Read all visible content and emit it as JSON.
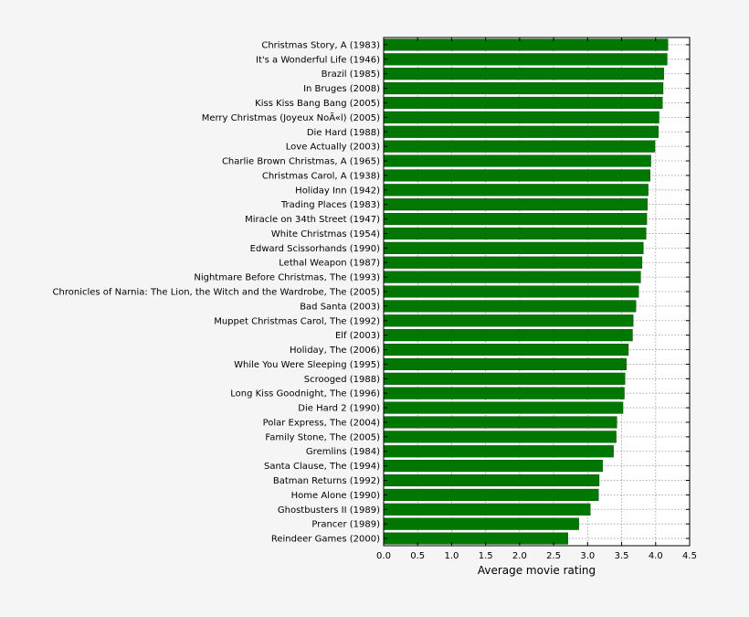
{
  "chart_data": {
    "type": "bar",
    "orientation": "horizontal",
    "categories": [
      "Christmas Story, A (1983)",
      "It's a Wonderful Life (1946)",
      "Brazil (1985)",
      "In Bruges (2008)",
      "Kiss Kiss Bang Bang (2005)",
      "Merry Christmas (Joyeux NoÃ«l) (2005)",
      "Die Hard (1988)",
      "Love Actually (2003)",
      "Charlie Brown Christmas, A (1965)",
      "Christmas Carol, A (1938)",
      "Holiday Inn (1942)",
      "Trading Places (1983)",
      "Miracle on 34th Street (1947)",
      "White Christmas (1954)",
      "Edward Scissorhands (1990)",
      "Lethal Weapon (1987)",
      "Nightmare Before Christmas, The (1993)",
      "Chronicles of Narnia: The Lion, the Witch and the Wardrobe, The (2005)",
      "Bad Santa (2003)",
      "Muppet Christmas Carol, The (1992)",
      "Elf (2003)",
      "Holiday, The (2006)",
      "While You Were Sleeping (1995)",
      "Scrooged (1988)",
      "Long Kiss Goodnight, The (1996)",
      "Die Hard 2 (1990)",
      "Polar Express, The (2004)",
      "Family Stone, The (2005)",
      "Gremlins (1984)",
      "Santa Clause, The (1994)",
      "Batman Returns (1992)",
      "Home Alone (1990)",
      "Ghostbusters II (1989)",
      "Prancer (1989)",
      "Reindeer Games (2000)"
    ],
    "values": [
      4.18,
      4.17,
      4.12,
      4.11,
      4.1,
      4.05,
      4.04,
      3.99,
      3.93,
      3.92,
      3.89,
      3.88,
      3.87,
      3.86,
      3.82,
      3.8,
      3.78,
      3.75,
      3.71,
      3.67,
      3.66,
      3.6,
      3.57,
      3.55,
      3.54,
      3.52,
      3.43,
      3.42,
      3.38,
      3.22,
      3.17,
      3.16,
      3.04,
      2.87,
      2.71
    ],
    "xlabel": "Average movie rating",
    "ylabel": "",
    "title": "",
    "xlim": [
      0,
      4.5
    ],
    "xticks": [
      "0.0",
      "0.5",
      "1.0",
      "1.5",
      "2.0",
      "2.5",
      "3.0",
      "3.5",
      "4.0",
      "4.5"
    ],
    "grid": true,
    "legend": "none",
    "colors": {
      "bar": "#007700",
      "background": "#f5f5f5",
      "plot_background": "#ffffff",
      "grid": "#9a9a9a"
    }
  }
}
